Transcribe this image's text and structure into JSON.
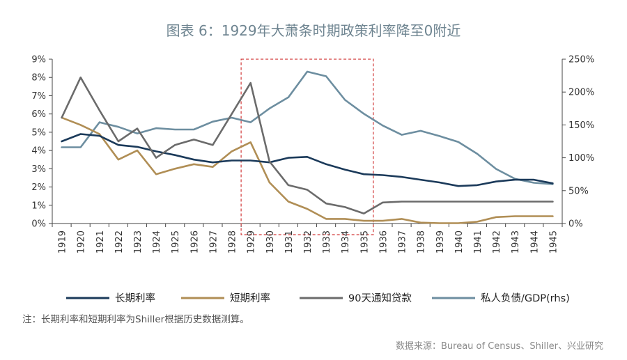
{
  "chart_data": {
    "type": "line",
    "title": "图表 6：1929年大萧条时期政策利率降至0附近",
    "x": [
      "1919",
      "1920",
      "1921",
      "1922",
      "1923",
      "1924",
      "1925",
      "1926",
      "1927",
      "1928",
      "1929",
      "1930",
      "1931",
      "1932",
      "1933",
      "1934",
      "1935",
      "1936",
      "1937",
      "1938",
      "1939",
      "1940",
      "1941",
      "1942",
      "1943",
      "1944",
      "1945"
    ],
    "y_left": {
      "ylim": [
        0,
        9
      ],
      "ticks": [
        "0%",
        "1%",
        "2%",
        "3%",
        "4%",
        "5%",
        "6%",
        "7%",
        "8%",
        "9%"
      ]
    },
    "y_right": {
      "ylim": [
        0,
        250
      ],
      "ticks": [
        "0%",
        "50%",
        "100%",
        "150%",
        "200%",
        "250%"
      ]
    },
    "highlight_range": [
      "1929",
      "1935"
    ],
    "series": [
      {
        "name": "长期利率",
        "axis": "left",
        "color": "#1b3a5a",
        "values": [
          4.5,
          4.9,
          4.8,
          4.3,
          4.2,
          3.95,
          3.75,
          3.5,
          3.35,
          3.45,
          3.45,
          3.35,
          3.6,
          3.65,
          3.25,
          2.95,
          2.7,
          2.65,
          2.55,
          2.4,
          2.25,
          2.05,
          2.1,
          2.3,
          2.4,
          2.4,
          2.2
        ]
      },
      {
        "name": "短期利率",
        "axis": "left",
        "color": "#b08e55",
        "values": [
          5.8,
          5.4,
          4.9,
          3.5,
          4.0,
          2.7,
          3.0,
          3.25,
          3.1,
          3.95,
          4.45,
          2.25,
          1.2,
          0.8,
          0.25,
          0.25,
          0.15,
          0.15,
          0.25,
          0.05,
          0.02,
          0.02,
          0.1,
          0.35,
          0.4,
          0.4,
          0.4
        ]
      },
      {
        "name": "90天通知贷款",
        "axis": "left",
        "color": "#6b6b6b",
        "values": [
          5.8,
          8.0,
          6.2,
          4.5,
          5.2,
          3.6,
          4.3,
          4.6,
          4.3,
          6.0,
          7.7,
          3.4,
          2.1,
          1.85,
          1.1,
          0.9,
          0.55,
          1.15,
          1.2,
          1.2,
          1.2,
          1.2,
          1.2,
          1.2,
          1.2,
          1.2,
          1.2
        ]
      },
      {
        "name": "私人负债/GDP(rhs)",
        "axis": "right",
        "color": "#6d8ea0",
        "values": [
          116,
          116,
          154,
          147,
          137,
          145,
          143,
          143,
          155,
          161,
          154,
          175,
          192,
          231,
          224,
          188,
          167,
          149,
          135,
          141,
          133,
          124,
          106,
          83,
          68,
          62,
          60
        ]
      }
    ]
  },
  "note": "注：长期利率和短期利率为Shiller根据历史数据测算。",
  "source": "数据来源：Bureau of Census、Shiller、兴业研究"
}
